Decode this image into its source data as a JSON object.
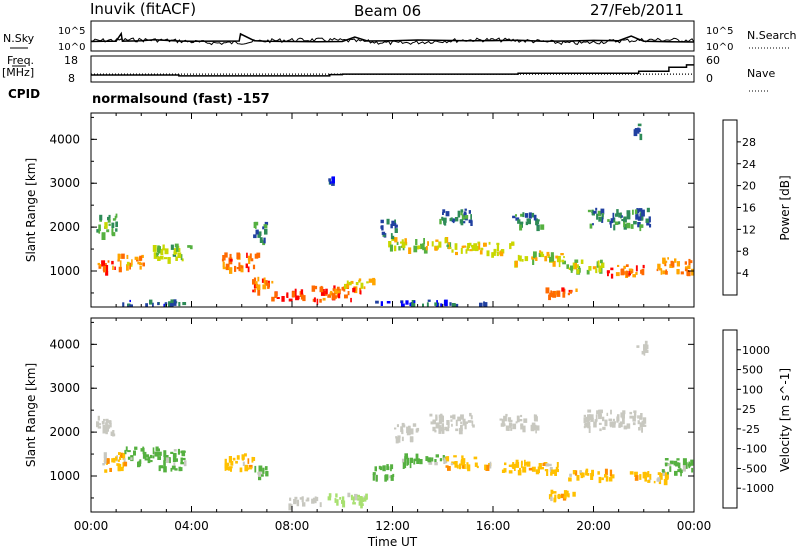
{
  "header": {
    "station": "Inuvik (fitACF)",
    "beam": "Beam 06",
    "date": "27/Feb/2011"
  },
  "left_labels": {
    "nsky": "N.Sky",
    "freq": "Freq.",
    "mhz": "[MHz]",
    "cpid": "CPID"
  },
  "right_labels": {
    "nsearch": "N.Search",
    "nave": "Nave"
  },
  "cpid_text": "normalsound (fast) -157",
  "chart_data": [
    {
      "type": "line",
      "name": "noise-panel",
      "left_ticks": [
        "10^5",
        "10^0"
      ],
      "right_ticks": [
        "10^5",
        "10^0"
      ],
      "x_range_hours": [
        0,
        24
      ],
      "baseline_value": 30,
      "series": [
        {
          "line": "solid",
          "x": [
            0,
            0.5,
            1,
            1.2,
            1.25,
            2,
            2.5,
            3,
            3.5,
            4,
            5,
            5.9,
            5.95,
            6.5,
            7,
            8,
            9,
            10,
            10.5,
            11,
            12,
            13,
            14,
            15,
            16,
            17,
            18,
            19,
            20,
            21,
            21.5,
            22,
            23,
            24
          ],
          "y": [
            28,
            30,
            32,
            900,
            32,
            40,
            60,
            45,
            35,
            30,
            33,
            35,
            800,
            40,
            30,
            28,
            25,
            28,
            200,
            35,
            40,
            55,
            45,
            38,
            42,
            50,
            30,
            35,
            45,
            40,
            300,
            30,
            25,
            22
          ]
        }
      ]
    },
    {
      "type": "line",
      "name": "freq-nave-panel",
      "left_ticks": [
        "18",
        "8"
      ],
      "right_ticks": [
        "60",
        "0"
      ],
      "x_range_hours": [
        0,
        24
      ],
      "series": [
        {
          "line": "solid",
          "x": [
            0,
            3.5,
            3.5,
            9.5,
            9.5,
            10,
            10,
            17,
            17,
            21.8,
            21.8,
            23,
            23,
            23.7,
            23.7,
            24
          ],
          "y": [
            10.6,
            10.6,
            10.2,
            10.2,
            10.8,
            10.8,
            11,
            11,
            11.4,
            11.4,
            12.2,
            12.2,
            14,
            14,
            15,
            15
          ]
        },
        {
          "line": "dotted",
          "x": [
            0,
            24
          ],
          "y": [
            11.0,
            11.0
          ]
        }
      ]
    },
    {
      "type": "heatmap",
      "name": "power",
      "xlabel": "",
      "ylabel": "Slant Range [km]",
      "ylim": [
        180,
        4600
      ],
      "yticks": [
        "1000",
        "2000",
        "3000",
        "4000"
      ],
      "colorbar": {
        "label": "Power [dB]",
        "ticks": [
          "4",
          "8",
          "12",
          "16",
          "20",
          "24",
          "28"
        ],
        "colors": [
          "#0000ff",
          "#2040a0",
          "#2e8b57",
          "#55b040",
          "#c8d800",
          "#ffa500",
          "#ff6a00",
          "#ff0000"
        ]
      },
      "blobs": [
        {
          "x": 0.7,
          "y": 1120,
          "w": 0.9,
          "h": 250,
          "v": 27
        },
        {
          "x": 1.6,
          "y": 1250,
          "w": 1.1,
          "h": 300,
          "v": 23
        },
        {
          "x": 3.2,
          "y": 1450,
          "w": 1.5,
          "h": 350,
          "v": 15
        },
        {
          "x": 0.6,
          "y": 2100,
          "w": 0.8,
          "h": 500,
          "v": 13
        },
        {
          "x": 5.9,
          "y": 1250,
          "w": 1.4,
          "h": 350,
          "v": 25
        },
        {
          "x": 6.8,
          "y": 700,
          "w": 0.8,
          "h": 350,
          "v": 25
        },
        {
          "x": 7.8,
          "y": 480,
          "w": 1.3,
          "h": 250,
          "v": 28
        },
        {
          "x": 9.8,
          "y": 520,
          "w": 2.1,
          "h": 320,
          "v": 27
        },
        {
          "x": 10.6,
          "y": 750,
          "w": 1.2,
          "h": 200,
          "v": 20
        },
        {
          "x": 6.7,
          "y": 1900,
          "w": 0.5,
          "h": 500,
          "v": 10
        },
        {
          "x": 13.0,
          "y": 1650,
          "w": 2.5,
          "h": 250,
          "v": 18
        },
        {
          "x": 15.5,
          "y": 1550,
          "w": 2.5,
          "h": 250,
          "v": 20
        },
        {
          "x": 17.8,
          "y": 1350,
          "w": 2.0,
          "h": 250,
          "v": 19
        },
        {
          "x": 19.5,
          "y": 1150,
          "w": 1.6,
          "h": 250,
          "v": 17
        },
        {
          "x": 18.7,
          "y": 550,
          "w": 1.3,
          "h": 200,
          "v": 25
        },
        {
          "x": 21.2,
          "y": 1050,
          "w": 1.6,
          "h": 250,
          "v": 26
        },
        {
          "x": 23.2,
          "y": 1150,
          "w": 1.4,
          "h": 350,
          "v": 24
        },
        {
          "x": 14.5,
          "y": 2300,
          "w": 1.5,
          "h": 350,
          "v": 9
        },
        {
          "x": 17.3,
          "y": 2200,
          "w": 1.2,
          "h": 300,
          "v": 9
        },
        {
          "x": 21.0,
          "y": 2250,
          "w": 2.5,
          "h": 400,
          "v": 10
        },
        {
          "x": 11.8,
          "y": 2000,
          "w": 0.6,
          "h": 400,
          "v": 8
        },
        {
          "x": 9.5,
          "y": 3100,
          "w": 0.2,
          "h": 150,
          "v": 6
        },
        {
          "x": 21.7,
          "y": 4250,
          "w": 0.3,
          "h": 250,
          "v": 8
        },
        {
          "x": 2.5,
          "y": 300,
          "w": 3.0,
          "h": 120,
          "v": 7
        },
        {
          "x": 13.5,
          "y": 300,
          "w": 4.5,
          "h": 100,
          "v": 6
        }
      ]
    },
    {
      "type": "heatmap",
      "name": "velocity",
      "xlabel": "Time UT",
      "ylabel": "Slant Range [km]",
      "ylim": [
        180,
        4600
      ],
      "yticks": [
        "1000",
        "2000",
        "3000",
        "4000"
      ],
      "xticks": [
        "00:00",
        "04:00",
        "08:00",
        "12:00",
        "16:00",
        "20:00",
        "00:00"
      ],
      "colorbar": {
        "label": "Velocity [m s^-1]",
        "ticks": [
          "1000",
          "500",
          "100",
          "25",
          "-25",
          "-100",
          "-500",
          "-1000"
        ],
        "colors": [
          "#1e3ca8",
          "#2e8b57",
          "#55b040",
          "#a8e070",
          "#c8c8c0",
          "#ffc000",
          "#ff8c00",
          "#ff4500",
          "#ff0000"
        ]
      },
      "blobs": [
        {
          "x": 0.8,
          "y": 1350,
          "w": 1.0,
          "h": 400,
          "v": -100
        },
        {
          "x": 2.0,
          "y": 1500,
          "w": 1.4,
          "h": 350,
          "v": 100
        },
        {
          "x": 3.2,
          "y": 1400,
          "w": 1.2,
          "h": 450,
          "v": 100
        },
        {
          "x": 0.5,
          "y": 2150,
          "w": 0.7,
          "h": 500,
          "v": 0
        },
        {
          "x": 5.9,
          "y": 1350,
          "w": 1.2,
          "h": 350,
          "v": -100
        },
        {
          "x": 6.8,
          "y": 1100,
          "w": 0.6,
          "h": 300,
          "v": 100
        },
        {
          "x": 8.5,
          "y": 450,
          "w": 1.4,
          "h": 200,
          "v": 0
        },
        {
          "x": 10.2,
          "y": 500,
          "w": 1.6,
          "h": 250,
          "v": 25
        },
        {
          "x": 11.5,
          "y": 1150,
          "w": 1.0,
          "h": 300,
          "v": 100
        },
        {
          "x": 13.2,
          "y": 1400,
          "w": 1.8,
          "h": 250,
          "v": 100
        },
        {
          "x": 15.0,
          "y": 1350,
          "w": 1.8,
          "h": 250,
          "v": -100
        },
        {
          "x": 17.5,
          "y": 1250,
          "w": 2.4,
          "h": 250,
          "v": -100
        },
        {
          "x": 19.8,
          "y": 1050,
          "w": 1.8,
          "h": 250,
          "v": -100
        },
        {
          "x": 18.6,
          "y": 600,
          "w": 1.4,
          "h": 220,
          "v": -100
        },
        {
          "x": 22.2,
          "y": 1000,
          "w": 1.6,
          "h": 250,
          "v": -100
        },
        {
          "x": 23.3,
          "y": 1250,
          "w": 1.2,
          "h": 350,
          "v": 100
        },
        {
          "x": 14.3,
          "y": 2250,
          "w": 1.8,
          "h": 400,
          "v": 0
        },
        {
          "x": 17.0,
          "y": 2250,
          "w": 1.5,
          "h": 350,
          "v": 0
        },
        {
          "x": 20.8,
          "y": 2300,
          "w": 2.4,
          "h": 450,
          "v": 0
        },
        {
          "x": 12.5,
          "y": 2050,
          "w": 1.0,
          "h": 350,
          "v": 0
        },
        {
          "x": 21.9,
          "y": 4000,
          "w": 0.4,
          "h": 350,
          "v": 0
        }
      ]
    }
  ]
}
